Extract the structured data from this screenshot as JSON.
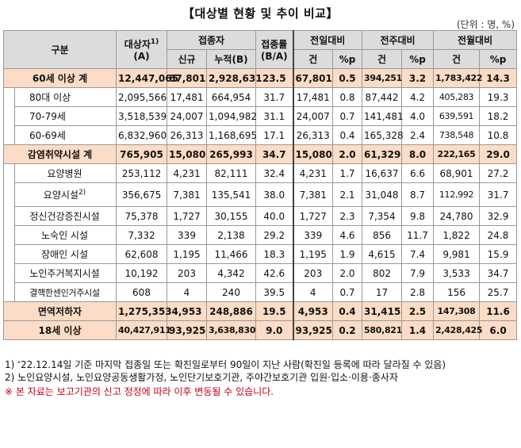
{
  "title": "【대상별 현황 및 추이 비교】",
  "unit": "(단위 : 명, %)",
  "headers": {
    "category": "구분",
    "target": "대상자",
    "target_sup": "1)",
    "target_sub": "(A)",
    "vaccinated": "접종자",
    "new": "신규",
    "cumulative": "누적(B)",
    "rate": "접종률",
    "rate_sub": "(B/A)",
    "prev_day": "전일대비",
    "prev_week": "전주대비",
    "prev_month": "전월대비",
    "count": "건",
    "pct": "%p"
  },
  "rows": [
    {
      "label": "60세 이상 계",
      "target": "12,447,065",
      "new": "67,801",
      "cum": "2,928,631",
      "rate": "23.5",
      "d_n": "67,801",
      "d_p": "0.5",
      "w_n": "394,251",
      "w_p": "3.2",
      "m_n": "1,783,422",
      "m_p": "14.3"
    },
    {
      "label": "80대 이상",
      "target": "2,095,566",
      "new": "17,481",
      "cum": "664,954",
      "rate": "31.7",
      "d_n": "17,481",
      "d_p": "0.8",
      "w_n": "87,442",
      "w_p": "4.2",
      "m_n": "405,283",
      "m_p": "19.3"
    },
    {
      "label": "70-79세",
      "target": "3,518,539",
      "new": "24,007",
      "cum": "1,094,982",
      "rate": "31.1",
      "d_n": "24,007",
      "d_p": "0.7",
      "w_n": "141,481",
      "w_p": "4.0",
      "m_n": "639,591",
      "m_p": "18.2"
    },
    {
      "label": "60-69세",
      "target": "6,832,960",
      "new": "26,313",
      "cum": "1,168,695",
      "rate": "17.1",
      "d_n": "26,313",
      "d_p": "0.4",
      "w_n": "165,328",
      "w_p": "2.4",
      "m_n": "738,548",
      "m_p": "10.8"
    },
    {
      "label": "감염취약시설 계",
      "target": "765,905",
      "new": "15,080",
      "cum": "265,993",
      "rate": "34.7",
      "d_n": "15,080",
      "d_p": "2.0",
      "w_n": "61,329",
      "w_p": "8.0",
      "m_n": "222,165",
      "m_p": "29.0"
    },
    {
      "label": "요양병원",
      "target": "253,112",
      "new": "4,231",
      "cum": "82,111",
      "rate": "32.4",
      "d_n": "4,231",
      "d_p": "1.7",
      "w_n": "16,637",
      "w_p": "6.6",
      "m_n": "68,901",
      "m_p": "27.2"
    },
    {
      "label": "요양시설",
      "label_sup": "2)",
      "target": "356,675",
      "new": "7,381",
      "cum": "135,541",
      "rate": "38.0",
      "d_n": "7,381",
      "d_p": "2.1",
      "w_n": "31,048",
      "w_p": "8.7",
      "m_n": "112,992",
      "m_p": "31.7"
    },
    {
      "label": "정신건강증진시설",
      "target": "75,378",
      "new": "1,727",
      "cum": "30,155",
      "rate": "40.0",
      "d_n": "1,727",
      "d_p": "2.3",
      "w_n": "7,354",
      "w_p": "9.8",
      "m_n": "24,780",
      "m_p": "32.9"
    },
    {
      "label": "노숙인 시설",
      "target": "7,332",
      "new": "339",
      "cum": "2,138",
      "rate": "29.2",
      "d_n": "339",
      "d_p": "4.6",
      "w_n": "856",
      "w_p": "11.7",
      "m_n": "1,822",
      "m_p": "24.8"
    },
    {
      "label": "장애인 시설",
      "target": "62,608",
      "new": "1,195",
      "cum": "11,466",
      "rate": "18.3",
      "d_n": "1,195",
      "d_p": "1.9",
      "w_n": "4,615",
      "w_p": "7.4",
      "m_n": "9,981",
      "m_p": "15.9"
    },
    {
      "label": "노인주거복지시설",
      "target": "10,192",
      "new": "203",
      "cum": "4,342",
      "rate": "42.6",
      "d_n": "203",
      "d_p": "2.0",
      "w_n": "802",
      "w_p": "7.9",
      "m_n": "3,533",
      "m_p": "34.7"
    },
    {
      "label": "결핵한센인거주시설",
      "target": "608",
      "new": "4",
      "cum": "240",
      "rate": "39.5",
      "d_n": "4",
      "d_p": "0.7",
      "w_n": "17",
      "w_p": "2.8",
      "m_n": "156",
      "m_p": "25.7"
    },
    {
      "label": "면역저하자",
      "target": "1,275,353",
      "new": "4,953",
      "cum": "248,886",
      "rate": "19.5",
      "d_n": "4,953",
      "d_p": "0.4",
      "w_n": "31,415",
      "w_p": "2.5",
      "m_n": "147,308",
      "m_p": "11.6"
    },
    {
      "label": "18세 이상",
      "target": "40,427,911",
      "new": "93,925",
      "cum": "3,638,830",
      "rate": "9.0",
      "d_n": "93,925",
      "d_p": "0.2",
      "w_n": "580,821",
      "w_p": "1.4",
      "m_n": "2,428,425",
      "m_p": "6.0"
    }
  ],
  "notes": {
    "n1": "1) ‘22.12.14일 기준 마지막 접종일 또는 확진일로부터 90일이 지난 사람(확진일 등록에 따라 달라질 수 있음)",
    "n2": "2) 노인요양시설, 노인요양공동생활가정, 노인단기보호기관, 주야간보호기관 입원·입소·이용·종사자",
    "warn": "※ 본 자료는 보고기관의 신고 정정에 따라 이후 변동될 수 있습니다."
  },
  "colors": {
    "header_bg": "#dcdcdc",
    "highlight_bg": "#fbdcc6",
    "warning": "#c0001a"
  }
}
